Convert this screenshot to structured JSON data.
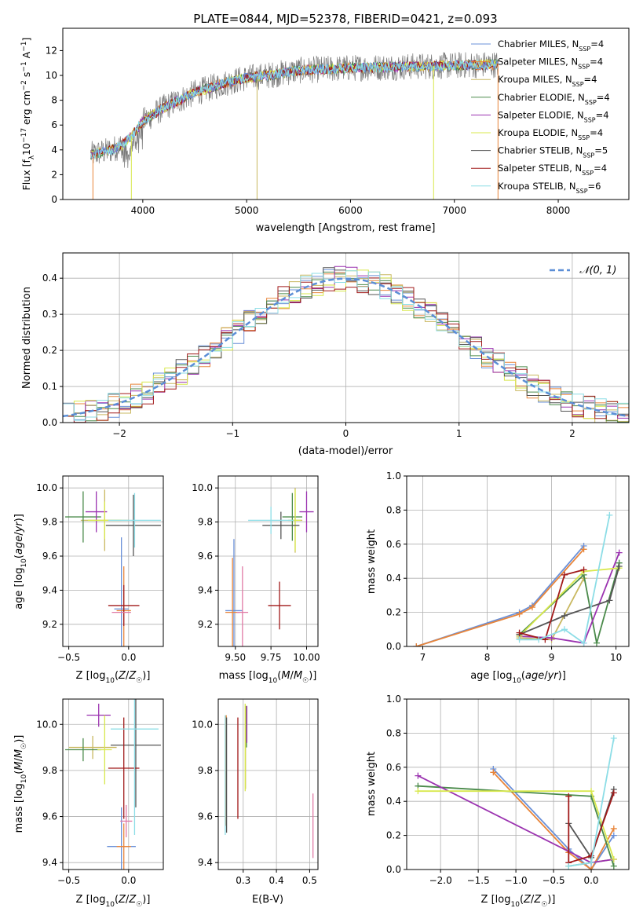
{
  "figure_title": "PLATE=0844, MJD=52378, FIBERID=0421, z=0.093",
  "model_colors": [
    "#6a90d8",
    "#e8853a",
    "#c9b860",
    "#4a8a4a",
    "#9b33b0",
    "#d8e84c",
    "#555555",
    "#a11a1a",
    "#8cdde6",
    "#e07aa6"
  ],
  "chart_data": [
    {
      "id": "spectrum",
      "type": "line",
      "title": "PLATE=0844, MJD=52378, FIBERID=0421, z=0.093",
      "xlabel": "wavelength [Angstrom, rest frame]",
      "ylabel": "Flux [f_λ 10^-17 erg cm^-2 s^-1 A^-1]",
      "xlim": [
        3230,
        8680
      ],
      "ylim": [
        0,
        13.8
      ],
      "xticks": [
        4000,
        5000,
        6000,
        7000,
        8000
      ],
      "yticks": [
        0,
        2,
        4,
        6,
        8,
        10,
        12
      ],
      "grid": false,
      "legend_position": "right",
      "spectrum_range": [
        3500,
        7420
      ],
      "continuum_knots": {
        "x": [
          3500,
          3700,
          3800,
          3900,
          4000,
          4200,
          4500,
          4800,
          5000,
          5200,
          5500,
          6000,
          6500,
          7000,
          7420
        ],
        "y": [
          3.6,
          4.0,
          4.4,
          5.2,
          6.3,
          7.4,
          8.6,
          9.4,
          9.8,
          10.0,
          10.4,
          10.6,
          10.7,
          10.8,
          10.9
        ]
      },
      "series": [
        {
          "name": "Chabrier MILES, N_SSP=4"
        },
        {
          "name": "Salpeter MILES, N_SSP=4"
        },
        {
          "name": "Kroupa MILES, N_SSP=4"
        },
        {
          "name": "Chabrier ELODIE, N_SSP=4"
        },
        {
          "name": "Salpeter ELODIE, N_SSP=4"
        },
        {
          "name": "Kroupa ELODIE, N_SSP=4"
        },
        {
          "name": "Chabrier STELIB, N_SSP=5"
        },
        {
          "name": "Salpeter STELIB, N_SSP=4"
        },
        {
          "name": "Kroupa STELIB, N_SSP=6"
        }
      ]
    },
    {
      "id": "residuals",
      "type": "line",
      "xlabel": "(data-model)/error",
      "ylabel": "Normed distribution",
      "xlim": [
        -2.5,
        2.5
      ],
      "ylim": [
        0,
        0.47
      ],
      "xticks": [
        -2,
        -1,
        0,
        1,
        2
      ],
      "yticks": [
        0.0,
        0.1,
        0.2,
        0.3,
        0.4
      ],
      "grid": true,
      "legend_position": "top-right",
      "reference_curve": {
        "name": "𝒩(0, 1)",
        "mean": 0,
        "sigma": 1
      },
      "bin_width": 0.1
    },
    {
      "id": "age_vs_Z",
      "type": "scatter",
      "xlabel": "Z [log10(Z/Z☉)]",
      "ylabel": "age  [log10(age/yr)]",
      "xlim": [
        -0.55,
        0.29
      ],
      "ylim": [
        9.07,
        10.07
      ],
      "xticks": [
        -0.5,
        0.0
      ],
      "yticks": [
        9.2,
        9.4,
        9.6,
        9.8,
        10.0
      ],
      "points": [
        {
          "x": -0.06,
          "y": 9.29,
          "xerr": 0.06,
          "yerr": 0.42
        },
        {
          "x": -0.04,
          "y": 9.28,
          "xerr": 0.06,
          "yerr": 0.26
        },
        {
          "x": -0.2,
          "y": 9.81,
          "xerr": 0.2,
          "yerr": 0.18
        },
        {
          "x": -0.38,
          "y": 9.83,
          "xerr": 0.15,
          "yerr": 0.15
        },
        {
          "x": -0.27,
          "y": 9.86,
          "xerr": 0.09,
          "yerr": 0.12
        },
        {
          "x": -0.2,
          "y": 9.81,
          "xerr": 0.14,
          "yerr": 0.11
        },
        {
          "x": 0.04,
          "y": 9.78,
          "xerr": 0.23,
          "yerr": 0.18
        },
        {
          "x": -0.04,
          "y": 9.31,
          "xerr": 0.13,
          "yerr": 0.12
        },
        {
          "x": 0.05,
          "y": 9.81,
          "xerr": 0.22,
          "yerr": 0.16
        },
        {
          "x": -0.06,
          "y": 9.27,
          "xerr": 0.08,
          "yerr": 0.0
        }
      ]
    },
    {
      "id": "age_vs_mass",
      "type": "scatter",
      "xlabel": "mass [log10(M/M☉)]",
      "ylabel": "",
      "xlim": [
        9.38,
        10.08
      ],
      "ylim": [
        9.07,
        10.07
      ],
      "xticks": [
        9.5,
        9.75,
        10.0
      ],
      "yticks": [
        9.2,
        9.4,
        9.6,
        9.8,
        10.0
      ],
      "points": [
        {
          "x": 9.49,
          "y": 9.28,
          "xerr": 0.06,
          "yerr": 0.42
        },
        {
          "x": 9.48,
          "y": 9.27,
          "xerr": 0.05,
          "yerr": 0.32
        },
        {
          "x": 9.92,
          "y": 9.81,
          "xerr": 0.05,
          "yerr": 0.19
        },
        {
          "x": 9.9,
          "y": 9.83,
          "xerr": 0.07,
          "yerr": 0.14
        },
        {
          "x": 10.0,
          "y": 9.86,
          "xerr": 0.05,
          "yerr": 0.12
        },
        {
          "x": 9.92,
          "y": 9.81,
          "xerr": 0.04,
          "yerr": 0.18
        },
        {
          "x": 9.82,
          "y": 9.78,
          "xerr": 0.13,
          "yerr": 0.08
        },
        {
          "x": 9.81,
          "y": 9.31,
          "xerr": 0.08,
          "yerr": 0.14
        },
        {
          "x": 9.75,
          "y": 9.81,
          "xerr": 0.16,
          "yerr": 0.08
        },
        {
          "x": 9.55,
          "y": 9.27,
          "xerr": 0.04,
          "yerr": 0.27
        }
      ]
    },
    {
      "id": "weight_vs_age",
      "type": "line",
      "xlabel": "age  [log10(age/yr)]",
      "ylabel": "mass weight",
      "xlim": [
        6.75,
        10.2
      ],
      "ylim": [
        0,
        1.0
      ],
      "xticks": [
        7,
        8,
        9,
        10
      ],
      "yticks": [
        0.0,
        0.2,
        0.4,
        0.6,
        0.8,
        1.0
      ],
      "grid": true,
      "series": [
        {
          "x": [
            6.9,
            8.5,
            8.7,
            9.5
          ],
          "y": [
            0.0,
            0.2,
            0.24,
            0.59
          ]
        },
        {
          "x": [
            6.9,
            8.5,
            8.7,
            9.5
          ],
          "y": [
            0.0,
            0.19,
            0.23,
            0.57
          ]
        },
        {
          "x": [
            8.5,
            9.0,
            9.5
          ],
          "y": [
            0.05,
            0.04,
            0.4
          ]
        },
        {
          "x": [
            8.5,
            9.5,
            9.7,
            10.05
          ],
          "y": [
            0.07,
            0.42,
            0.02,
            0.49
          ]
        },
        {
          "x": [
            8.5,
            9.0,
            9.5,
            10.05
          ],
          "y": [
            0.06,
            0.05,
            0.02,
            0.55
          ]
        },
        {
          "x": [
            8.5,
            9.5,
            10.05
          ],
          "y": [
            0.06,
            0.44,
            0.46
          ]
        },
        {
          "x": [
            8.5,
            9.2,
            9.9,
            10.05
          ],
          "y": [
            0.07,
            0.18,
            0.27,
            0.47
          ]
        },
        {
          "x": [
            8.5,
            8.9,
            9.2,
            9.5
          ],
          "y": [
            0.08,
            0.04,
            0.42,
            0.45
          ]
        },
        {
          "x": [
            8.5,
            8.8,
            9.2,
            9.5,
            9.9
          ],
          "y": [
            0.04,
            0.04,
            0.1,
            0.02,
            0.77
          ]
        }
      ]
    },
    {
      "id": "mass_vs_Z",
      "type": "scatter",
      "xlabel": "Z [log10(Z/Z☉)]",
      "ylabel": "mass [log10(M/M☉)]",
      "xlim": [
        -0.55,
        0.29
      ],
      "ylim": [
        9.37,
        10.11
      ],
      "xticks": [
        -0.5,
        0.0
      ],
      "yticks": [
        9.4,
        9.6,
        9.8,
        10.0
      ],
      "points": [
        {
          "x": -0.06,
          "y": 9.47,
          "xerr": 0.12,
          "yerr": 0.17
        },
        {
          "x": -0.04,
          "y": 9.47,
          "xerr": 0.06,
          "yerr": 0.1
        },
        {
          "x": -0.3,
          "y": 9.9,
          "xerr": 0.2,
          "yerr": 0.05
        },
        {
          "x": -0.38,
          "y": 9.89,
          "xerr": 0.15,
          "yerr": 0.05
        },
        {
          "x": -0.25,
          "y": 10.04,
          "xerr": 0.1,
          "yerr": 0.05
        },
        {
          "x": -0.2,
          "y": 9.89,
          "xerr": 0.06,
          "yerr": 0.15
        },
        {
          "x": 0.06,
          "y": 9.91,
          "xerr": 0.21,
          "yerr": 0.27
        },
        {
          "x": -0.04,
          "y": 9.81,
          "xerr": 0.13,
          "yerr": 0.22
        },
        {
          "x": 0.05,
          "y": 9.98,
          "xerr": 0.2,
          "yerr": 0.46
        },
        {
          "x": -0.02,
          "y": 9.58,
          "xerr": 0.05,
          "yerr": 0.07
        }
      ]
    },
    {
      "id": "mass_vs_ebv",
      "type": "scatter",
      "xlabel": "E(B-V)",
      "ylabel": "",
      "xlim": [
        0.225,
        0.525
      ],
      "ylim": [
        9.37,
        10.11
      ],
      "xticks": [
        0.3,
        0.4,
        0.5
      ],
      "yticks": [
        9.4,
        9.6,
        9.8,
        10.0
      ],
      "points": [
        {
          "x": 0.247,
          "y": 9.8,
          "xerr": 0.0,
          "yerr": 0.24
        },
        {
          "x": 0.249,
          "y": 9.8,
          "xerr": 0.0,
          "yerr": 0.24
        },
        {
          "x": 0.307,
          "y": 9.9,
          "xerr": 0.0,
          "yerr": 0.18
        },
        {
          "x": 0.31,
          "y": 9.99,
          "xerr": 0.0,
          "yerr": 0.09
        },
        {
          "x": 0.311,
          "y": 10.0,
          "xerr": 0.0,
          "yerr": 0.08
        },
        {
          "x": 0.306,
          "y": 9.9,
          "xerr": 0.0,
          "yerr": 0.19
        },
        {
          "x": 0.25,
          "y": 9.78,
          "xerr": 0.0,
          "yerr": 0.25
        },
        {
          "x": 0.284,
          "y": 9.81,
          "xerr": 0.0,
          "yerr": 0.22
        },
        {
          "x": 0.246,
          "y": 9.78,
          "xerr": 0.0,
          "yerr": 0.26
        },
        {
          "x": 0.51,
          "y": 9.56,
          "xerr": 0.0,
          "yerr": 0.14
        }
      ]
    },
    {
      "id": "weight_vs_Z",
      "type": "line",
      "xlabel": "Z [log10(Z/Z☉)]",
      "ylabel": "mass weight",
      "xlim": [
        -2.45,
        0.5
      ],
      "ylim": [
        0,
        1.0
      ],
      "xticks": [
        -2.0,
        -1.5,
        -1.0,
        -0.5,
        0.0
      ],
      "yticks": [
        0.0,
        0.2,
        0.4,
        0.6,
        0.8,
        1.0
      ],
      "grid": true,
      "series": [
        {
          "x": [
            -1.3,
            -0.3,
            0.0,
            0.3
          ],
          "y": [
            0.59,
            0.12,
            0.0,
            0.2
          ]
        },
        {
          "x": [
            -1.3,
            -0.3,
            0.0,
            0.3
          ],
          "y": [
            0.57,
            0.1,
            0.0,
            0.24
          ]
        },
        {
          "x": [
            -0.3,
            0.0,
            0.3
          ],
          "y": [
            0.02,
            0.04,
            0.06
          ]
        },
        {
          "x": [
            -2.3,
            0.0,
            0.3
          ],
          "y": [
            0.49,
            0.43,
            0.02
          ]
        },
        {
          "x": [
            -2.3,
            0.0,
            0.3
          ],
          "y": [
            0.55,
            0.04,
            0.06
          ]
        },
        {
          "x": [
            -2.3,
            0.0,
            0.3
          ],
          "y": [
            0.46,
            0.46,
            0.06
          ]
        },
        {
          "x": [
            -0.3,
            0.0,
            0.3
          ],
          "y": [
            0.27,
            0.07,
            0.47
          ]
        },
        {
          "x": [
            -0.3,
            -0.3,
            0.0,
            0.3
          ],
          "y": [
            0.43,
            0.04,
            0.08,
            0.45
          ]
        },
        {
          "x": [
            -0.3,
            0.0,
            0.3
          ],
          "y": [
            0.02,
            0.04,
            0.77
          ]
        }
      ]
    }
  ]
}
